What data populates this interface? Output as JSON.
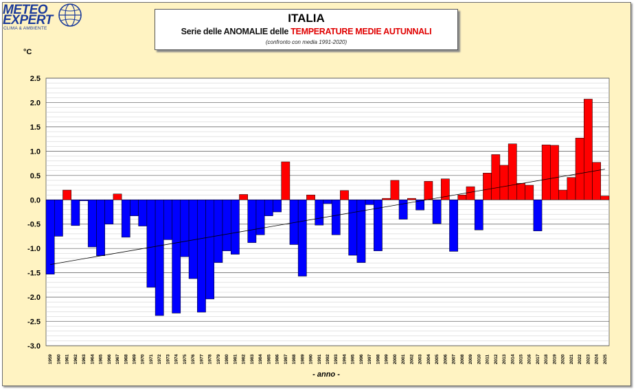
{
  "logo": {
    "line1": "METEO",
    "line2": "EXPERT",
    "tagline": "CLIMA & AMBIENTE"
  },
  "title": {
    "main": "ITALIA",
    "sub_part1": "Serie delle ANOMALIE delle ",
    "sub_part2": "TEMPERATURE MEDIE AUTUNNALI",
    "note": "(confronto con media 1991-2020)"
  },
  "chart_data": {
    "type": "bar",
    "ylabel": "°C",
    "xlabel": "- anno -",
    "ylim": [
      -3.0,
      2.5
    ],
    "yticks": [
      "2.5",
      "2.0",
      "1.5",
      "1.0",
      "0.5",
      "0.0",
      "-0.5",
      "-1.0",
      "-1.5",
      "-2.0",
      "-2.5",
      "-3.0"
    ],
    "ytick_values": [
      2.5,
      2.0,
      1.5,
      1.0,
      0.5,
      0.0,
      -0.5,
      -1.0,
      -1.5,
      -2.0,
      -2.5,
      -3.0
    ],
    "grid": true,
    "colors": {
      "positive": "#ff0000",
      "negative": "#0000ff",
      "background": "#ffffff",
      "frame": "#FFF3C2"
    },
    "categories": [
      "1959",
      "1960",
      "1961",
      "1962",
      "1963",
      "1964",
      "1965",
      "1966",
      "1967",
      "1968",
      "1969",
      "1970",
      "1971",
      "1972",
      "1973",
      "1974",
      "1975",
      "1976",
      "1977",
      "1978",
      "1979",
      "1980",
      "1981",
      "1982",
      "1983",
      "1984",
      "1985",
      "1986",
      "1987",
      "1988",
      "1989",
      "1990",
      "1991",
      "1992",
      "1993",
      "1994",
      "1995",
      "1996",
      "1997",
      "1998",
      "1999",
      "2000",
      "2001",
      "2002",
      "2003",
      "2004",
      "2005",
      "2006",
      "2007",
      "2008",
      "2009",
      "2010",
      "2011",
      "2012",
      "2013",
      "2014",
      "2015",
      "2016",
      "2017",
      "2018",
      "2019",
      "2020",
      "2021",
      "2022",
      "2023",
      "2024",
      "2025"
    ],
    "values": [
      -1.53,
      -0.75,
      0.2,
      -0.53,
      -0.02,
      -0.97,
      -1.15,
      -0.5,
      0.12,
      -0.77,
      -0.33,
      -0.54,
      -1.8,
      -2.38,
      -0.82,
      -2.33,
      -1.17,
      -1.62,
      -2.31,
      -2.04,
      -1.29,
      -1.05,
      -1.12,
      0.11,
      -0.88,
      -0.72,
      -0.33,
      -0.25,
      0.78,
      -0.92,
      -1.57,
      0.1,
      -0.52,
      -0.08,
      -0.72,
      0.19,
      -1.14,
      -1.29,
      -0.1,
      -1.05,
      0.03,
      0.4,
      -0.4,
      0.03,
      -0.21,
      0.38,
      -0.49,
      0.43,
      -1.06,
      0.1,
      0.27,
      -0.62,
      0.55,
      0.93,
      0.71,
      1.15,
      0.34,
      0.3,
      -0.64,
      1.13,
      1.12,
      0.2,
      0.46,
      1.27,
      2.07,
      0.77,
      0.08
    ],
    "trend": {
      "start": -1.33,
      "end": 0.63
    }
  }
}
